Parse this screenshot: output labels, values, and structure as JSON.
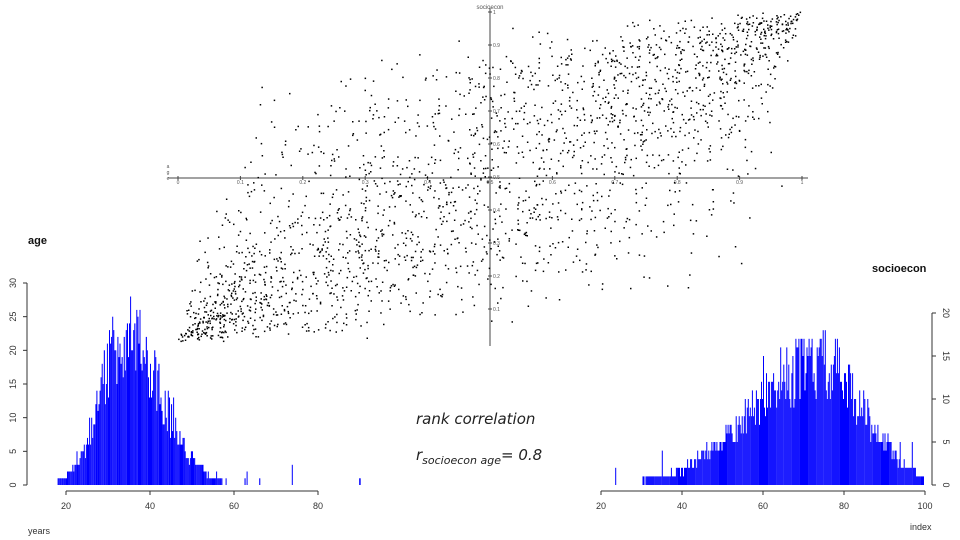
{
  "chart_data": [
    {
      "type": "scatter",
      "title": "socioecon",
      "xlim": [
        0,
        1
      ],
      "ylim": [
        0,
        1
      ],
      "x_tick_labels": [
        "0",
        "0.1",
        "0.2",
        "0.3",
        "0.4",
        "0.5",
        "0.6",
        "0.7",
        "0.8",
        "0.9",
        "1"
      ],
      "y_tick_labels": [
        "0.1",
        "0.2",
        "0.3",
        "0.4",
        "0.5",
        "0.6",
        "0.7",
        "0.8",
        "0.9",
        "1"
      ],
      "axis_corner_labels": [
        "a",
        "g",
        "e"
      ],
      "point_count": 2400,
      "rank_correlation": 0.8,
      "point_color": "#000000",
      "grid": false
    },
    {
      "type": "bar",
      "title": "age",
      "xlabel": "years",
      "xlim": [
        13,
        80
      ],
      "ylim": [
        0,
        30
      ],
      "x_ticks": [
        "20",
        "40",
        "60",
        "80"
      ],
      "y_ticks": [
        "0",
        "5",
        "10",
        "15",
        "20",
        "25",
        "30"
      ],
      "bin_width": 0.25,
      "mode": 34,
      "peak": 29,
      "outlier": 89.8,
      "bar_color": "#0000ff",
      "grid": false
    },
    {
      "type": "bar",
      "title": "socioecon",
      "xlabel": "index",
      "xlim": [
        17,
        100
      ],
      "ylim": [
        0,
        20
      ],
      "x_ticks": [
        "20",
        "40",
        "60",
        "80",
        "100"
      ],
      "y_ticks": [
        "0",
        "5",
        "10",
        "15",
        "20"
      ],
      "bin_width": 0.25,
      "mode": 74,
      "peak": 18,
      "bar_color": "#0000ff",
      "grid": false
    }
  ],
  "annotation": {
    "title": "rank correlation",
    "r_symbol": "r",
    "r_subscript": "socioecon age",
    "r_value": "= 0.8"
  }
}
